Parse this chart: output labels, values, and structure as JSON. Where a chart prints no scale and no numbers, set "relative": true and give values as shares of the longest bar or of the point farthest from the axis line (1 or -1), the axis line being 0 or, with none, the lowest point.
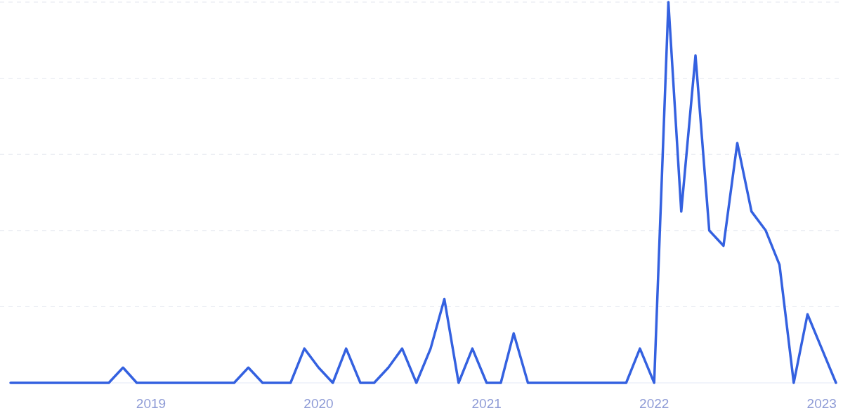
{
  "chart_data": {
    "type": "line",
    "relative": true,
    "grid": "y",
    "x": [
      "2018-03",
      "2018-04",
      "2018-05",
      "2018-06",
      "2018-07",
      "2018-08",
      "2018-09",
      "2018-10",
      "2018-11",
      "2018-12",
      "2019-01",
      "2019-02",
      "2019-03",
      "2019-04",
      "2019-05",
      "2019-06",
      "2019-07",
      "2019-08",
      "2019-09",
      "2019-10",
      "2019-11",
      "2019-12",
      "2020-01",
      "2020-02",
      "2020-03",
      "2020-04",
      "2020-05",
      "2020-06",
      "2020-07",
      "2020-08",
      "2020-09",
      "2020-10",
      "2020-11",
      "2020-12",
      "2021-01",
      "2021-02",
      "2021-03",
      "2021-04",
      "2021-05",
      "2021-06",
      "2021-07",
      "2021-08",
      "2021-09",
      "2021-10",
      "2021-11",
      "2021-12",
      "2022-01",
      "2022-02",
      "2022-03",
      "2022-04",
      "2022-05",
      "2022-06",
      "2022-07",
      "2022-08",
      "2022-09",
      "2022-10",
      "2022-11",
      "2022-12",
      "2023-01",
      "2023-02"
    ],
    "series": [
      {
        "color": "#3461e0",
        "values": [
          0,
          0,
          0,
          0,
          0,
          0,
          0,
          0,
          0.04,
          0,
          0,
          0,
          0,
          0,
          0,
          0,
          0,
          0.04,
          0,
          0,
          0,
          0.09,
          0.04,
          0,
          0.09,
          0,
          0,
          0.04,
          0.09,
          0,
          0.09,
          0.22,
          0,
          0.09,
          0,
          0,
          0.13,
          0,
          0,
          0,
          0,
          0,
          0,
          0,
          0,
          0.09,
          0,
          1,
          0.45,
          0.86,
          0.4,
          0.36,
          0.63,
          0.45,
          0.4,
          0.31,
          0,
          0.18,
          0.09,
          0
        ]
      }
    ],
    "xlim": [
      "2018-03",
      "2023-02"
    ],
    "xticks": [
      {
        "value": "2019-01",
        "label": "2019"
      },
      {
        "value": "2020-01",
        "label": "2020"
      },
      {
        "value": "2021-01",
        "label": "2021"
      },
      {
        "value": "2022-01",
        "label": "2022"
      },
      {
        "value": "2023-01",
        "label": "2023"
      }
    ],
    "marker": "none",
    "line_style": "solid"
  }
}
